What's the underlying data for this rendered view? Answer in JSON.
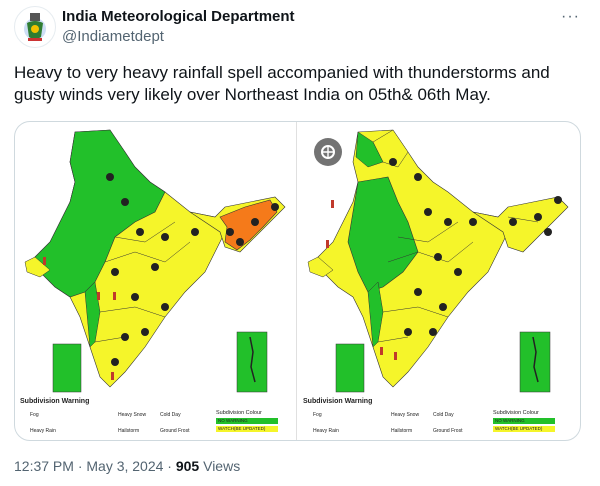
{
  "account": {
    "name": "India Meteorological Department",
    "handle": "@Indiametdept",
    "more_label": "···",
    "avatar_icon": "imd-emblem-icon"
  },
  "tweet": {
    "text": "Heavy to very heavy rainfall spell accompanied with thunderstorms and gusty winds very likely over Northeast India on 05th& 06th May."
  },
  "media": {
    "panels": [
      {
        "legend": {
          "title": "Subdivision Warning",
          "items": [
            "Fog",
            "Heavy Rain",
            "Heavy Snow",
            "Hailstorm",
            "Cold Day",
            "Ground Frost"
          ],
          "colour_title": "Subdivision Colour",
          "swatches": [
            {
              "label": "NO WARNING",
              "color": "#22c02a"
            },
            {
              "label": "WATCH(BE UPDATED)",
              "color": "#f5f52a"
            }
          ]
        }
      },
      {
        "legend": {
          "title": "Subdivision Warning",
          "items": [
            "Fog",
            "Heavy Rain",
            "Heavy Snow",
            "Hailstorm",
            "Cold Day",
            "Ground Frost"
          ],
          "colour_title": "Subdivision Colour",
          "swatches": [
            {
              "label": "NO WARNING",
              "color": "#22c02a"
            },
            {
              "label": "WATCH(BE UPDATED)",
              "color": "#f5f52a"
            }
          ]
        }
      }
    ],
    "colors": {
      "green": "#22c02a",
      "yellow": "#f5f52a",
      "orange": "#f57a1a"
    },
    "lens_icon": "google-lens-icon"
  },
  "meta": {
    "time": "12:37 PM · May 3, 2024 · ",
    "views_count": "905",
    "views_label": " Views"
  }
}
